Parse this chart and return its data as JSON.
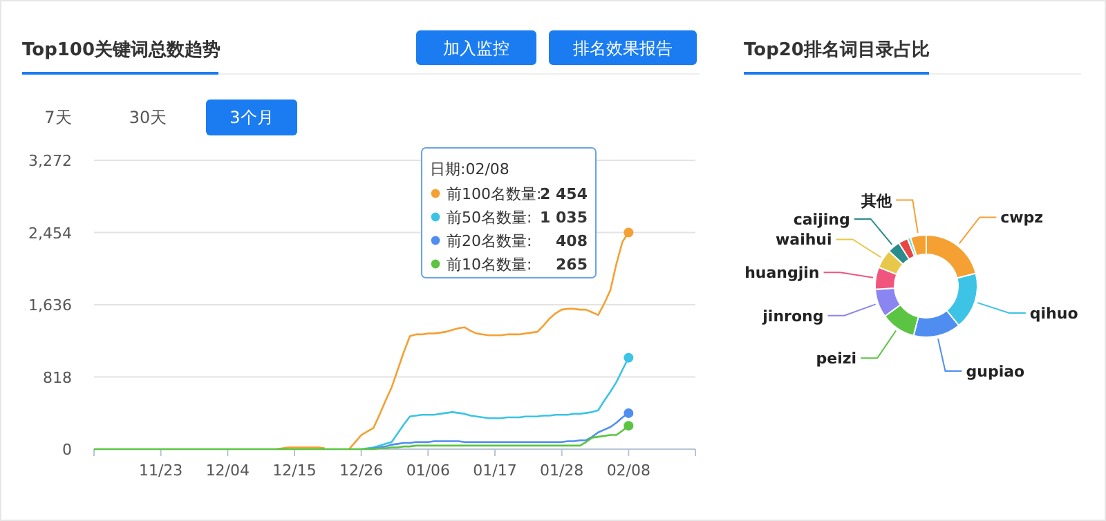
{
  "chart_data": [
    {
      "type": "line",
      "title": "Top100关键词总数趋势",
      "categories": [
        null,
        null,
        null,
        null,
        null,
        null,
        null,
        null,
        null,
        null,
        null,
        "11/23",
        null,
        null,
        null,
        null,
        null,
        null,
        null,
        null,
        null,
        null,
        "12/04",
        null,
        null,
        null,
        null,
        null,
        null,
        null,
        null,
        null,
        null,
        "12/15",
        null,
        null,
        null,
        null,
        null,
        null,
        null,
        null,
        null,
        null,
        "12/26",
        null,
        null,
        null,
        null,
        null,
        null,
        null,
        null,
        null,
        null,
        "01/06",
        null,
        null,
        null,
        null,
        null,
        null,
        null,
        null,
        null,
        null,
        "01/17",
        null,
        null,
        null,
        null,
        null,
        null,
        null,
        null,
        null,
        null,
        "01/28",
        null,
        null,
        null,
        null,
        null,
        null,
        null,
        null,
        null,
        null,
        "02/08",
        null,
        null,
        null,
        null,
        null,
        null,
        null,
        null,
        null,
        null,
        null
      ],
      "ylim": [
        0,
        3272
      ],
      "yticks": [
        {
          "value": 0,
          "label": "0"
        },
        {
          "value": 818,
          "label": "818"
        },
        {
          "value": 1636,
          "label": "1,636"
        },
        {
          "value": 2454,
          "label": "2,454"
        },
        {
          "value": 3272,
          "label": "3,272"
        }
      ],
      "grid": "y",
      "legend": "top",
      "annotations": [
        "加入监控",
        "排名效果报告",
        "7天",
        "30天",
        "3个月",
        "日期:02/08",
        "2 454",
        "1 035",
        "408",
        "265"
      ],
      "series": [
        {
          "name": "前100名数量:",
          "color": "#f5a033",
          "values": [
            null,
            null,
            null,
            null,
            null,
            null,
            null,
            null,
            null,
            null,
            null,
            null,
            null,
            null,
            null,
            null,
            null,
            null,
            null,
            null,
            null,
            null,
            null,
            null,
            null,
            null,
            null,
            null,
            null,
            null,
            0,
            10,
            20,
            20,
            20,
            20,
            20,
            20,
            10,
            null,
            null,
            null,
            0,
            80,
            160,
            200,
            240,
            390,
            550,
            700,
            900,
            1100,
            1280,
            1300,
            1300,
            1310,
            1310,
            1320,
            1330,
            1350,
            1370,
            1380,
            1340,
            1310,
            1300,
            1290,
            1290,
            1290,
            1300,
            1300,
            1300,
            1310,
            1320,
            1330,
            1400,
            1480,
            1540,
            1580,
            1590,
            1590,
            1580,
            1580,
            1550,
            1520,
            1650,
            1800,
            2100,
            2350,
            2454,
            null,
            null,
            null,
            null,
            null,
            null,
            null,
            null,
            null,
            null,
            null
          ]
        },
        {
          "name": "前50名数量:",
          "color": "#3cc3e6",
          "values": [
            null,
            null,
            null,
            null,
            null,
            null,
            null,
            null,
            null,
            null,
            null,
            null,
            null,
            null,
            null,
            null,
            null,
            null,
            null,
            null,
            null,
            null,
            null,
            null,
            null,
            null,
            null,
            null,
            null,
            null,
            null,
            null,
            null,
            null,
            null,
            null,
            null,
            null,
            null,
            null,
            null,
            null,
            null,
            null,
            0,
            10,
            20,
            40,
            60,
            80,
            180,
            280,
            370,
            380,
            390,
            390,
            390,
            400,
            410,
            420,
            410,
            400,
            380,
            370,
            360,
            350,
            350,
            350,
            360,
            360,
            360,
            370,
            370,
            370,
            380,
            380,
            390,
            390,
            390,
            400,
            400,
            410,
            420,
            440,
            550,
            650,
            760,
            900,
            1035,
            null,
            null,
            null,
            null,
            null,
            null,
            null,
            null,
            null,
            null,
            null
          ]
        },
        {
          "name": "前20名数量:",
          "color": "#4f8ef0",
          "values": [
            null,
            null,
            null,
            null,
            null,
            null,
            null,
            null,
            null,
            null,
            null,
            null,
            null,
            null,
            null,
            null,
            null,
            null,
            null,
            null,
            null,
            null,
            null,
            null,
            null,
            null,
            null,
            null,
            null,
            null,
            null,
            null,
            null,
            null,
            null,
            null,
            null,
            null,
            null,
            null,
            null,
            null,
            null,
            null,
            null,
            0,
            10,
            20,
            30,
            50,
            60,
            70,
            70,
            80,
            80,
            80,
            90,
            90,
            90,
            90,
            90,
            80,
            80,
            80,
            80,
            80,
            80,
            80,
            80,
            80,
            80,
            80,
            80,
            80,
            80,
            80,
            80,
            80,
            90,
            90,
            100,
            100,
            140,
            190,
            220,
            250,
            300,
            360,
            408,
            null,
            null,
            null,
            null,
            null,
            null,
            null,
            null,
            null,
            null,
            null
          ]
        },
        {
          "name": "前10名数量:",
          "color": "#5cc443",
          "values": [
            0,
            0,
            0,
            0,
            0,
            0,
            0,
            0,
            0,
            0,
            0,
            0,
            0,
            0,
            0,
            0,
            0,
            0,
            0,
            0,
            0,
            0,
            0,
            0,
            0,
            0,
            0,
            0,
            0,
            0,
            0,
            0,
            0,
            0,
            0,
            0,
            0,
            0,
            0,
            0,
            0,
            0,
            0,
            0,
            0,
            0,
            0,
            10,
            10,
            20,
            20,
            30,
            30,
            40,
            40,
            40,
            40,
            40,
            40,
            40,
            40,
            40,
            40,
            40,
            40,
            40,
            40,
            40,
            40,
            40,
            40,
            40,
            40,
            40,
            40,
            40,
            40,
            40,
            40,
            40,
            40,
            80,
            130,
            140,
            150,
            160,
            160,
            210,
            265,
            null,
            null,
            null,
            null,
            null,
            null,
            null,
            null,
            null,
            null,
            null
          ]
        }
      ]
    },
    {
      "type": "donut",
      "title": "Top20排名词目录占比",
      "categories": [
        "cwpz",
        "qihuo",
        "gupiao",
        "peizi",
        "jinrong",
        "huangjin",
        "waihui",
        "caijing",
        null,
        null,
        "其他"
      ],
      "values": [
        21,
        18,
        15,
        11,
        9,
        7,
        6,
        4,
        3,
        1,
        5
      ],
      "colors": [
        "#f5a033",
        "#3cc3e6",
        "#4f8ef0",
        "#5cc443",
        "#8a85f0",
        "#f0557d",
        "#e8c84a",
        "#2a8c8c",
        "#e84545",
        "#5ee0e0",
        "#f5a033"
      ]
    }
  ]
}
